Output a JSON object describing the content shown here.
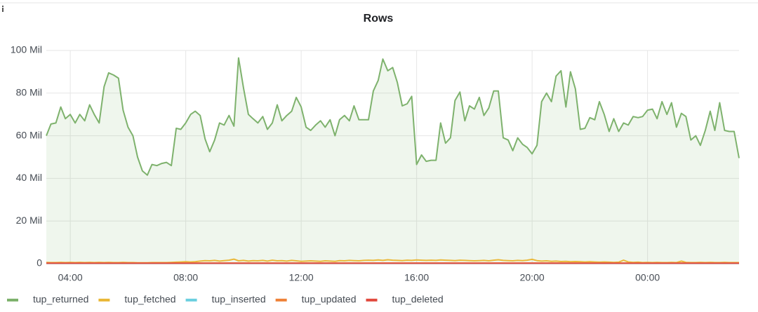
{
  "chart_data": {
    "type": "line",
    "title": "Rows",
    "x": [
      3.17,
      3.33,
      3.5,
      3.67,
      3.83,
      4,
      4.17,
      4.33,
      4.5,
      4.67,
      4.83,
      5,
      5.17,
      5.33,
      5.5,
      5.67,
      5.83,
      6,
      6.17,
      6.33,
      6.5,
      6.67,
      6.83,
      7,
      7.17,
      7.33,
      7.5,
      7.67,
      7.83,
      8,
      8.17,
      8.33,
      8.5,
      8.67,
      8.83,
      9,
      9.17,
      9.33,
      9.5,
      9.67,
      9.83,
      10,
      10.17,
      10.33,
      10.5,
      10.67,
      10.83,
      11,
      11.17,
      11.33,
      11.5,
      11.67,
      11.83,
      12,
      12.17,
      12.33,
      12.5,
      12.67,
      12.83,
      13,
      13.17,
      13.33,
      13.5,
      13.67,
      13.83,
      14,
      14.17,
      14.33,
      14.5,
      14.67,
      14.83,
      15,
      15.17,
      15.33,
      15.5,
      15.67,
      15.83,
      16,
      16.17,
      16.33,
      16.5,
      16.67,
      16.83,
      17,
      17.17,
      17.33,
      17.5,
      17.67,
      17.83,
      18,
      18.17,
      18.33,
      18.5,
      18.67,
      18.83,
      19,
      19.17,
      19.33,
      19.5,
      19.67,
      19.83,
      20,
      20.17,
      20.33,
      20.5,
      20.67,
      20.83,
      21,
      21.17,
      21.33,
      21.5,
      21.67,
      21.83,
      22,
      22.17,
      22.33,
      22.5,
      22.67,
      22.83,
      23,
      23.17,
      23.33,
      23.5,
      23.67,
      23.83,
      24,
      24.17,
      24.33,
      24.5,
      24.67,
      24.83,
      25,
      25.17,
      25.33,
      25.5,
      25.67,
      25.83,
      26,
      26.17,
      26.33,
      26.5,
      26.67,
      26.83,
      27,
      27.17
    ],
    "series": [
      {
        "name": "tup_returned",
        "color": "#7eb26d",
        "area": true,
        "values": [
          60,
          65.5,
          66,
          73.5,
          68,
          70,
          66,
          70,
          67,
          74.5,
          70,
          66,
          83,
          89.5,
          88.5,
          87,
          72,
          64,
          60,
          50,
          43.5,
          41.5,
          46.5,
          46,
          47,
          47.5,
          46,
          63.5,
          63,
          66,
          70,
          71.5,
          69.5,
          58.5,
          52.5,
          58,
          66,
          65,
          69.5,
          64.5,
          96.5,
          82.5,
          70,
          68,
          66,
          69,
          63,
          66,
          74.5,
          67,
          69.5,
          71.5,
          78,
          73.5,
          64,
          62.5,
          65,
          67,
          64,
          67.5,
          60,
          67.5,
          69.5,
          67,
          74,
          67.5,
          67.5,
          67.5,
          81,
          86,
          96,
          90.5,
          92,
          85,
          74,
          75,
          78.5,
          46.5,
          51,
          48,
          48.5,
          48.5,
          66,
          56.5,
          59,
          76.5,
          80.5,
          67,
          74,
          72.5,
          78,
          69.5,
          73,
          81,
          81,
          59,
          58,
          53,
          59,
          56,
          54.5,
          51.5,
          55.5,
          76,
          80,
          76,
          88,
          90.5,
          73.5,
          90,
          82,
          63,
          63.5,
          68.5,
          67.5,
          76,
          70,
          62,
          68,
          62,
          66,
          65,
          69,
          68.5,
          69,
          72,
          72.5,
          68,
          76,
          70,
          75.5,
          64,
          70.5,
          69,
          58,
          60,
          55.5,
          62.5,
          71.5,
          62.5,
          75.5,
          62.5,
          62,
          62,
          49.5
        ]
      },
      {
        "name": "tup_fetched",
        "color": "#eab839",
        "values": [
          0.6,
          0.5,
          0.5,
          0.6,
          0.5,
          0.6,
          0.5,
          0.6,
          0.5,
          0.6,
          0.5,
          0.6,
          0.5,
          0.6,
          0.5,
          0.5,
          0.6,
          0.5,
          0.5,
          0.4,
          0.4,
          0.4,
          0.5,
          0.5,
          0.5,
          0.5,
          0.6,
          0.7,
          0.8,
          0.9,
          0.8,
          0.9,
          1.2,
          1.4,
          1.3,
          1.5,
          1.2,
          1.4,
          1.6,
          2.1,
          1.3,
          1.5,
          1.2,
          1.4,
          1.3,
          1.5,
          1.2,
          1.6,
          1.3,
          1.4,
          1.2,
          1.5,
          1.3,
          1.1,
          1.2,
          1.3,
          1.2,
          1.1,
          1.3,
          1.2,
          1.1,
          1.4,
          1.3,
          1.5,
          1.4,
          1.3,
          1.5,
          1.6,
          1.5,
          1.7,
          1.5,
          1.8,
          1.6,
          1.5,
          1.4,
          1.6,
          1.5,
          1.7,
          1.6,
          1.5,
          1.6,
          1.5,
          1.7,
          1.6,
          1.5,
          1.4,
          1.6,
          1.5,
          1.4,
          1.3,
          1.4,
          1.5,
          1.3,
          1.6,
          1.8,
          1.5,
          1.4,
          1.3,
          1.5,
          1.4,
          1.6,
          2,
          1.4,
          1.2,
          1.3,
          1.1,
          1.2,
          1,
          1.1,
          0.9,
          1,
          0.9,
          0.8,
          0.9,
          0.8,
          0.7,
          0.8,
          0.7,
          0.6,
          0.7,
          1.6,
          0.8,
          0.6,
          0.7,
          0.5,
          0.6,
          0.5,
          0.6,
          0.5,
          0.5,
          0.6,
          0.5,
          1.2,
          0.6,
          0.5,
          0.5,
          0.6,
          0.5,
          0.6,
          0.5,
          0.5,
          0.6,
          0.5,
          0.5,
          0.5
        ]
      },
      {
        "name": "tup_inserted",
        "color": "#6ed0e0",
        "values": [
          0.05,
          0.05,
          0.05,
          0.05,
          0.05,
          0.05,
          0.05,
          0.05,
          0.05,
          0.05,
          0.05,
          0.05,
          0.05,
          0.05,
          0.05,
          0.05,
          0.05,
          0.05,
          0.05,
          0.05,
          0.05,
          0.05,
          0.05,
          0.05,
          0.05,
          0.05,
          0.05,
          0.05,
          0.05,
          0.05,
          0.05,
          0.05,
          0.05,
          0.05,
          0.05,
          0.05,
          0.05,
          0.05,
          0.05,
          0.05,
          0.05,
          0.05,
          0.05,
          0.05,
          0.05,
          0.05,
          0.05,
          0.05,
          0.05,
          0.05,
          0.05,
          0.05,
          0.05,
          0.05,
          0.05,
          0.05,
          0.05,
          0.05,
          0.05,
          0.05,
          0.05,
          0.05,
          0.05,
          0.05,
          0.05,
          0.05,
          0.05,
          0.05,
          0.05,
          0.05,
          0.05,
          0.05,
          0.05,
          0.05,
          0.05,
          0.05,
          0.05,
          0.05,
          0.05,
          0.05,
          0.05,
          0.05,
          0.05,
          0.05,
          0.05,
          0.05,
          0.05,
          0.05,
          0.05,
          0.05,
          0.05,
          0.05,
          0.05,
          0.05,
          0.05,
          0.05,
          0.05,
          0.05,
          0.05,
          0.05,
          0.05,
          0.05,
          0.05,
          0.05,
          0.05,
          0.05,
          0.05,
          0.05,
          0.05,
          0.05,
          0.05,
          0.05,
          0.05,
          0.05,
          0.05,
          0.05,
          0.05,
          0.05,
          0.05,
          0.05,
          0.05,
          0.05,
          0.05,
          0.05,
          0.05,
          0.05,
          0.05,
          0.05,
          0.05,
          0.05,
          0.05,
          0.05,
          0.05,
          0.05,
          0.05,
          0.05,
          0.05,
          0.05,
          0.05,
          0.05,
          0.05,
          0.05,
          0.05,
          0.05,
          0.05
        ]
      },
      {
        "name": "tup_updated",
        "color": "#ef843c",
        "values": [
          0.3,
          0.3,
          0.3,
          0.3,
          0.3,
          0.3,
          0.3,
          0.3,
          0.3,
          0.3,
          0.3,
          0.3,
          0.3,
          0.3,
          0.3,
          0.3,
          0.3,
          0.3,
          0.3,
          0.3,
          0.3,
          0.3,
          0.3,
          0.3,
          0.3,
          0.3,
          0.3,
          0.3,
          0.3,
          0.3,
          0.3,
          0.3,
          0.3,
          0.3,
          0.3,
          0.3,
          0.3,
          0.3,
          0.3,
          0.3,
          0.3,
          0.3,
          0.3,
          0.3,
          0.3,
          0.3,
          0.3,
          0.3,
          0.3,
          0.3,
          0.3,
          0.3,
          0.3,
          0.3,
          0.3,
          0.3,
          0.3,
          0.3,
          0.3,
          0.3,
          0.3,
          0.3,
          0.3,
          0.3,
          0.3,
          0.3,
          0.3,
          0.3,
          0.3,
          0.3,
          0.3,
          0.3,
          0.3,
          0.3,
          0.3,
          0.3,
          0.3,
          0.3,
          0.3,
          0.3,
          0.3,
          0.3,
          0.3,
          0.3,
          0.3,
          0.3,
          0.3,
          0.3,
          0.3,
          0.3,
          0.3,
          0.3,
          0.3,
          0.3,
          0.3,
          0.3,
          0.3,
          0.3,
          0.3,
          0.3,
          0.3,
          0.3,
          0.3,
          0.3,
          0.3,
          0.3,
          0.3,
          0.3,
          0.3,
          0.3,
          0.3,
          0.3,
          0.3,
          0.3,
          0.3,
          0.3,
          0.3,
          0.3,
          0.3,
          0.3,
          0.3,
          0.3,
          0.3,
          0.3,
          0.3,
          0.3,
          0.3,
          0.3,
          0.3,
          0.3,
          0.3,
          0.3,
          0.3,
          0.3,
          0.3,
          0.3,
          0.3,
          0.3,
          0.3,
          0.3,
          0.3,
          0.3,
          0.3,
          0.3,
          0.3
        ]
      },
      {
        "name": "tup_deleted",
        "color": "#e24d42",
        "values": [
          0.15,
          0.15,
          0.15,
          0.15,
          0.15,
          0.15,
          0.15,
          0.15,
          0.15,
          0.15,
          0.15,
          0.15,
          0.15,
          0.15,
          0.15,
          0.15,
          0.15,
          0.15,
          0.15,
          0.15,
          0.15,
          0.15,
          0.15,
          0.15,
          0.15,
          0.15,
          0.15,
          0.15,
          0.15,
          0.15,
          0.15,
          0.15,
          0.15,
          0.15,
          0.15,
          0.15,
          0.15,
          0.15,
          0.15,
          0.15,
          0.15,
          0.15,
          0.15,
          0.15,
          0.15,
          0.15,
          0.15,
          0.15,
          0.15,
          0.15,
          0.15,
          0.15,
          0.15,
          0.15,
          0.15,
          0.15,
          0.15,
          0.15,
          0.15,
          0.15,
          0.15,
          0.15,
          0.15,
          0.15,
          0.15,
          0.15,
          0.15,
          0.15,
          0.15,
          0.15,
          0.15,
          0.15,
          0.15,
          0.15,
          0.15,
          0.15,
          0.15,
          0.15,
          0.15,
          0.15,
          0.15,
          0.15,
          0.15,
          0.15,
          0.15,
          0.15,
          0.15,
          0.15,
          0.15,
          0.15,
          0.15,
          0.15,
          0.15,
          0.15,
          0.15,
          0.15,
          0.15,
          0.15,
          0.15,
          0.15,
          0.15,
          0.15,
          0.15,
          0.15,
          0.15,
          0.15,
          0.15,
          0.15,
          0.15,
          0.15,
          0.15,
          0.15,
          0.15,
          0.15,
          0.15,
          0.15,
          0.15,
          0.15,
          0.15,
          0.15,
          0.15,
          0.15,
          0.15,
          0.15,
          0.15,
          0.15,
          0.15,
          0.15,
          0.15,
          0.15,
          0.15,
          0.15,
          0.15,
          0.15,
          0.15,
          0.15,
          0.15,
          0.15,
          0.15,
          0.15,
          0.15,
          0.15,
          0.15,
          0.15,
          0.15
        ]
      }
    ],
    "xlim": [
      3.17,
      27.17
    ],
    "xticks": [
      {
        "value": 4,
        "label": "04:00"
      },
      {
        "value": 8,
        "label": "08:00"
      },
      {
        "value": 12,
        "label": "12:00"
      },
      {
        "value": 16,
        "label": "16:00"
      },
      {
        "value": 20,
        "label": "20:00"
      },
      {
        "value": 24,
        "label": "00:00"
      }
    ],
    "ylim": [
      0,
      100
    ],
    "yticks": [
      0,
      {
        "value": 20,
        "label": "20 Mil"
      },
      {
        "value": 40,
        "label": "40 Mil"
      },
      {
        "value": 60,
        "label": "60 Mil"
      },
      {
        "value": 80,
        "label": "80 Mil"
      },
      {
        "value": 100,
        "label": "100 Mil"
      }
    ],
    "grid": true,
    "legend": "bottom"
  }
}
